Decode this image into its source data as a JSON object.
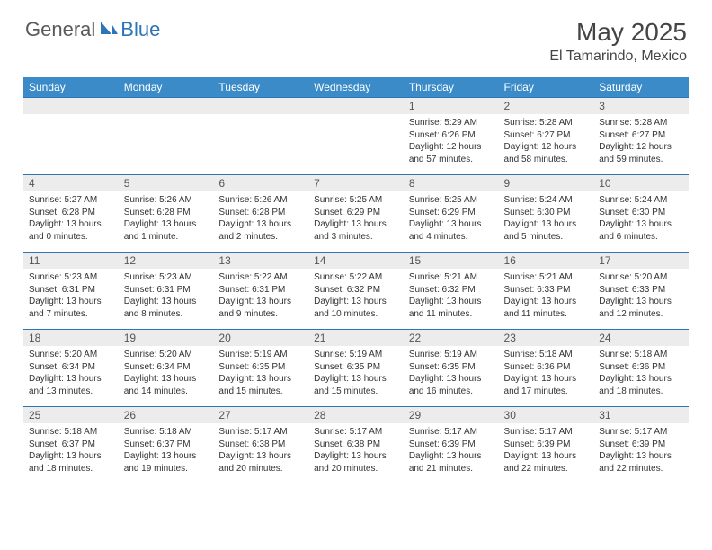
{
  "logo": {
    "general": "General",
    "blue": "Blue"
  },
  "title": "May 2025",
  "location": "El Tamarindo, Mexico",
  "colors": {
    "header_bg": "#3b8bc8",
    "header_text": "#ffffff",
    "daynum_bg": "#ececec",
    "border": "#2e75b6",
    "body_text": "#333333"
  },
  "fonts": {
    "title_size": 28,
    "location_size": 16,
    "dayhead_size": 12,
    "daynum_size": 12,
    "details_size": 10
  },
  "dayheads": [
    "Sunday",
    "Monday",
    "Tuesday",
    "Wednesday",
    "Thursday",
    "Friday",
    "Saturday"
  ],
  "weeks": [
    [
      {
        "n": "",
        "sr": "",
        "ss": "",
        "dl": ""
      },
      {
        "n": "",
        "sr": "",
        "ss": "",
        "dl": ""
      },
      {
        "n": "",
        "sr": "",
        "ss": "",
        "dl": ""
      },
      {
        "n": "",
        "sr": "",
        "ss": "",
        "dl": ""
      },
      {
        "n": "1",
        "sr": "Sunrise: 5:29 AM",
        "ss": "Sunset: 6:26 PM",
        "dl": "Daylight: 12 hours and 57 minutes."
      },
      {
        "n": "2",
        "sr": "Sunrise: 5:28 AM",
        "ss": "Sunset: 6:27 PM",
        "dl": "Daylight: 12 hours and 58 minutes."
      },
      {
        "n": "3",
        "sr": "Sunrise: 5:28 AM",
        "ss": "Sunset: 6:27 PM",
        "dl": "Daylight: 12 hours and 59 minutes."
      }
    ],
    [
      {
        "n": "4",
        "sr": "Sunrise: 5:27 AM",
        "ss": "Sunset: 6:28 PM",
        "dl": "Daylight: 13 hours and 0 minutes."
      },
      {
        "n": "5",
        "sr": "Sunrise: 5:26 AM",
        "ss": "Sunset: 6:28 PM",
        "dl": "Daylight: 13 hours and 1 minute."
      },
      {
        "n": "6",
        "sr": "Sunrise: 5:26 AM",
        "ss": "Sunset: 6:28 PM",
        "dl": "Daylight: 13 hours and 2 minutes."
      },
      {
        "n": "7",
        "sr": "Sunrise: 5:25 AM",
        "ss": "Sunset: 6:29 PM",
        "dl": "Daylight: 13 hours and 3 minutes."
      },
      {
        "n": "8",
        "sr": "Sunrise: 5:25 AM",
        "ss": "Sunset: 6:29 PM",
        "dl": "Daylight: 13 hours and 4 minutes."
      },
      {
        "n": "9",
        "sr": "Sunrise: 5:24 AM",
        "ss": "Sunset: 6:30 PM",
        "dl": "Daylight: 13 hours and 5 minutes."
      },
      {
        "n": "10",
        "sr": "Sunrise: 5:24 AM",
        "ss": "Sunset: 6:30 PM",
        "dl": "Daylight: 13 hours and 6 minutes."
      }
    ],
    [
      {
        "n": "11",
        "sr": "Sunrise: 5:23 AM",
        "ss": "Sunset: 6:31 PM",
        "dl": "Daylight: 13 hours and 7 minutes."
      },
      {
        "n": "12",
        "sr": "Sunrise: 5:23 AM",
        "ss": "Sunset: 6:31 PM",
        "dl": "Daylight: 13 hours and 8 minutes."
      },
      {
        "n": "13",
        "sr": "Sunrise: 5:22 AM",
        "ss": "Sunset: 6:31 PM",
        "dl": "Daylight: 13 hours and 9 minutes."
      },
      {
        "n": "14",
        "sr": "Sunrise: 5:22 AM",
        "ss": "Sunset: 6:32 PM",
        "dl": "Daylight: 13 hours and 10 minutes."
      },
      {
        "n": "15",
        "sr": "Sunrise: 5:21 AM",
        "ss": "Sunset: 6:32 PM",
        "dl": "Daylight: 13 hours and 11 minutes."
      },
      {
        "n": "16",
        "sr": "Sunrise: 5:21 AM",
        "ss": "Sunset: 6:33 PM",
        "dl": "Daylight: 13 hours and 11 minutes."
      },
      {
        "n": "17",
        "sr": "Sunrise: 5:20 AM",
        "ss": "Sunset: 6:33 PM",
        "dl": "Daylight: 13 hours and 12 minutes."
      }
    ],
    [
      {
        "n": "18",
        "sr": "Sunrise: 5:20 AM",
        "ss": "Sunset: 6:34 PM",
        "dl": "Daylight: 13 hours and 13 minutes."
      },
      {
        "n": "19",
        "sr": "Sunrise: 5:20 AM",
        "ss": "Sunset: 6:34 PM",
        "dl": "Daylight: 13 hours and 14 minutes."
      },
      {
        "n": "20",
        "sr": "Sunrise: 5:19 AM",
        "ss": "Sunset: 6:35 PM",
        "dl": "Daylight: 13 hours and 15 minutes."
      },
      {
        "n": "21",
        "sr": "Sunrise: 5:19 AM",
        "ss": "Sunset: 6:35 PM",
        "dl": "Daylight: 13 hours and 15 minutes."
      },
      {
        "n": "22",
        "sr": "Sunrise: 5:19 AM",
        "ss": "Sunset: 6:35 PM",
        "dl": "Daylight: 13 hours and 16 minutes."
      },
      {
        "n": "23",
        "sr": "Sunrise: 5:18 AM",
        "ss": "Sunset: 6:36 PM",
        "dl": "Daylight: 13 hours and 17 minutes."
      },
      {
        "n": "24",
        "sr": "Sunrise: 5:18 AM",
        "ss": "Sunset: 6:36 PM",
        "dl": "Daylight: 13 hours and 18 minutes."
      }
    ],
    [
      {
        "n": "25",
        "sr": "Sunrise: 5:18 AM",
        "ss": "Sunset: 6:37 PM",
        "dl": "Daylight: 13 hours and 18 minutes."
      },
      {
        "n": "26",
        "sr": "Sunrise: 5:18 AM",
        "ss": "Sunset: 6:37 PM",
        "dl": "Daylight: 13 hours and 19 minutes."
      },
      {
        "n": "27",
        "sr": "Sunrise: 5:17 AM",
        "ss": "Sunset: 6:38 PM",
        "dl": "Daylight: 13 hours and 20 minutes."
      },
      {
        "n": "28",
        "sr": "Sunrise: 5:17 AM",
        "ss": "Sunset: 6:38 PM",
        "dl": "Daylight: 13 hours and 20 minutes."
      },
      {
        "n": "29",
        "sr": "Sunrise: 5:17 AM",
        "ss": "Sunset: 6:39 PM",
        "dl": "Daylight: 13 hours and 21 minutes."
      },
      {
        "n": "30",
        "sr": "Sunrise: 5:17 AM",
        "ss": "Sunset: 6:39 PM",
        "dl": "Daylight: 13 hours and 22 minutes."
      },
      {
        "n": "31",
        "sr": "Sunrise: 5:17 AM",
        "ss": "Sunset: 6:39 PM",
        "dl": "Daylight: 13 hours and 22 minutes."
      }
    ]
  ]
}
